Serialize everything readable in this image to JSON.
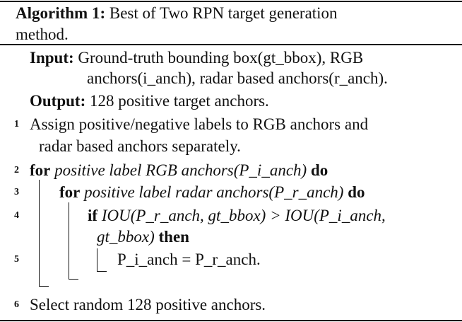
{
  "title": {
    "label": "Algorithm 1:",
    "text_line1": "Best of Two RPN target generation",
    "text_line2": "method."
  },
  "input": {
    "label": "Input:",
    "line1": "Ground-truth bounding box(gt_bbox), RGB",
    "line2": "anchors(i_anch), radar based anchors(r_anch)."
  },
  "output": {
    "label": "Output:",
    "text": "128 positive target anchors."
  },
  "steps": [
    {
      "num": "1",
      "line1": "Assign positive/negative labels to RGB anchors and",
      "line2": "radar based anchors separately."
    },
    {
      "num": "2",
      "kw": "for",
      "cond": "positive label RGB anchors(P_i_anch)",
      "kw2": "do"
    },
    {
      "num": "3",
      "kw": "for",
      "cond": "positive label radar anchors(P_r_anch)",
      "kw2": "do"
    },
    {
      "num": "4",
      "kw": "if",
      "cond1": "IOU(P_r_anch, gt_bbox) > IOU(P_i_anch,",
      "cond2": "gt_bbox)",
      "kw2": "then"
    },
    {
      "num": "5",
      "text": "P_i_anch = P_r_anch."
    },
    {
      "num": "6",
      "text": "Select random 128 positive anchors."
    }
  ]
}
